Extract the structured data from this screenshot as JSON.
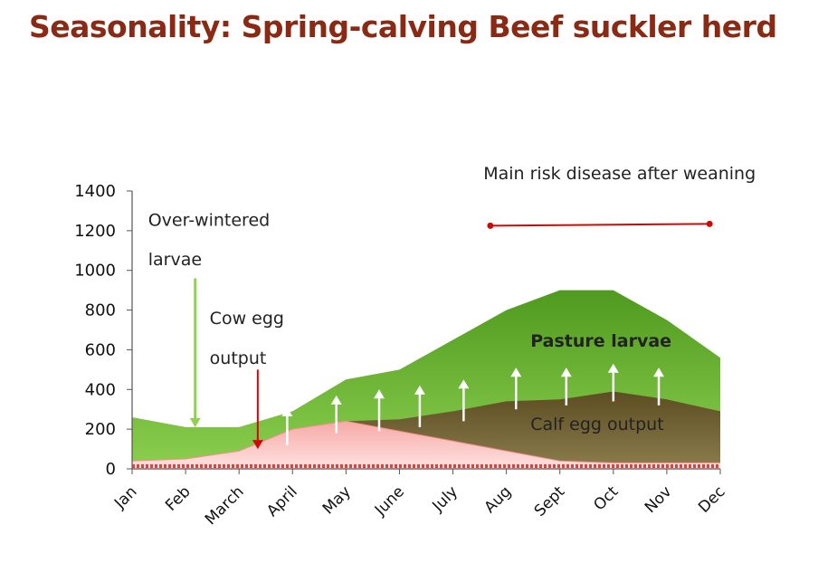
{
  "slide": {
    "title": "Seasonality: Spring-calving Beef suckler herd"
  },
  "colors": {
    "title": "#8a2a14",
    "pasture_larvae": "#5da127",
    "calf_egg_output": "#6b5a2c",
    "cow_egg_output": "#f6b9b7",
    "risk_line": "#cc0a0a",
    "over_wintered_arrow": "#92d050",
    "cow_arrow": "#cc0a0a"
  },
  "chart_data": {
    "type": "area",
    "title": "",
    "xlabel": "",
    "ylabel": "",
    "ylim": [
      0,
      1400
    ],
    "yticks": [
      "0",
      "200",
      "400",
      "600",
      "800",
      "1000",
      "1200",
      "1400"
    ],
    "categories": [
      "Jan",
      "Feb",
      "March",
      "April",
      "May",
      "June",
      "July",
      "Aug",
      "Sept",
      "Oct",
      "Nov",
      "Dec"
    ],
    "series": [
      {
        "name": "Pasture larvae",
        "values": [
          260,
          210,
          210,
          290,
          450,
          500,
          650,
          800,
          900,
          900,
          750,
          560
        ]
      },
      {
        "name": "Calf egg output",
        "values": [
          null,
          null,
          null,
          null,
          240,
          250,
          290,
          340,
          350,
          390,
          350,
          290
        ]
      },
      {
        "name": "Cow egg output",
        "values": [
          40,
          50,
          90,
          200,
          240,
          190,
          140,
          90,
          40,
          30,
          30,
          30
        ]
      }
    ],
    "grid": false,
    "legend": "none"
  },
  "annotations": {
    "over_wintered": [
      "Over-wintered",
      "larvae"
    ],
    "cow_egg": [
      "Cow egg",
      "output"
    ],
    "pasture_larvae": "Pasture larvae",
    "calf_egg": "Calf egg output",
    "risk": "Main risk disease after weaning"
  }
}
